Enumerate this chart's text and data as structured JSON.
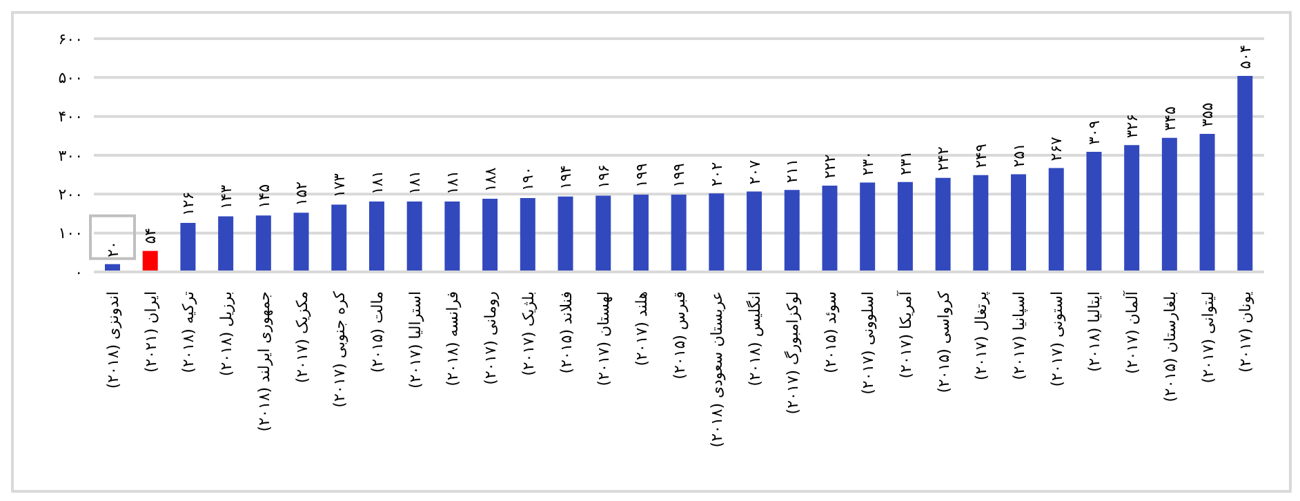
{
  "chart_data": {
    "type": "bar",
    "categories": [
      "اندونزی (۲۰۱۸)",
      "ایران (۲۰۲۱)",
      "ترکیه (۲۰۱۸)",
      "برزیل (۲۰۱۸)",
      "جمهوری ایرلند (۲۰۱۸)",
      "مکزیک (۲۰۱۷)",
      "کره جنوبی (۲۰۱۷)",
      "مالت (۲۰۱۵)",
      "استرالیا (۲۰۱۷)",
      "فرانسه (۲۰۱۸)",
      "رومانی (۲۰۱۷)",
      "بلژیک (۲۰۱۷)",
      "فنلاند (۲۰۱۵)",
      "لهستان (۲۰۱۷)",
      "هلند (۲۰۱۷)",
      "قبرس (۲۰۱۵)",
      "عربستان سعودی (۲۰۱۸)",
      "انگلیس (۲۰۱۸)",
      "لوکزامبورگ (۲۰۱۷)",
      "سوئد (۲۰۱۵)",
      "اسلوونی (۲۰۱۷)",
      "آمریکا (۲۰۱۷)",
      "کرواسی (۲۰۱۵)",
      "پرتغال (۲۰۱۷)",
      "اسپانیا (۲۰۱۷)",
      "استونی (۲۰۱۷)",
      "ایتالیا (۲۰۱۸)",
      "آلمان (۲۰۱۷)",
      "بلغارستان (۲۰۱۵)",
      "لیتوانی (۲۰۱۷)",
      "یونان (۲۰۱۷)"
    ],
    "values": [
      20,
      54,
      126,
      143,
      145,
      152,
      173,
      181,
      181,
      181,
      188,
      190,
      194,
      196,
      199,
      199,
      202,
      207,
      211,
      222,
      230,
      231,
      242,
      249,
      251,
      267,
      309,
      326,
      345,
      355,
      504
    ],
    "value_labels": [
      "۲۰",
      "۵۴",
      "۱۲۶",
      "۱۴۳",
      "۱۴۵",
      "۱۵۲",
      "۱۷۳",
      "۱۸۱",
      "۱۸۱",
      "۱۸۱",
      "۱۸۸",
      "۱۹۰",
      "۱۹۴",
      "۱۹۶",
      "۱۹۹",
      "۱۹۹",
      "۲۰۲",
      "۲۰۷",
      "۲۱۱",
      "۲۲۲",
      "۲۳۰",
      "۲۳۱",
      "۲۴۲",
      "۲۴۹",
      "۲۵۱",
      "۲۶۷",
      "۳۰۹",
      "۳۲۶",
      "۳۴۵",
      "۳۵۵",
      "۵۰۴"
    ],
    "colors": [
      "#3249be",
      "#ff0000",
      "#3249be",
      "#3249be",
      "#3249be",
      "#3249be",
      "#3249be",
      "#3249be",
      "#3249be",
      "#3249be",
      "#3249be",
      "#3249be",
      "#3249be",
      "#3249be",
      "#3249be",
      "#3249be",
      "#3249be",
      "#3249be",
      "#3249be",
      "#3249be",
      "#3249be",
      "#3249be",
      "#3249be",
      "#3249be",
      "#3249be",
      "#3249be",
      "#3249be",
      "#3249be",
      "#3249be",
      "#3249be",
      "#3249be"
    ],
    "ylim": [
      0,
      600
    ],
    "yticks": [
      {
        "value": 0,
        "label": "۰"
      },
      {
        "value": 100,
        "label": "۱۰۰"
      },
      {
        "value": 200,
        "label": "۲۰۰"
      },
      {
        "value": 300,
        "label": "۳۰۰"
      },
      {
        "value": 400,
        "label": "۴۰۰"
      },
      {
        "value": 500,
        "label": "۵۰۰"
      },
      {
        "value": 600,
        "label": "۶۰۰"
      }
    ],
    "grid": "y",
    "legend": false
  }
}
